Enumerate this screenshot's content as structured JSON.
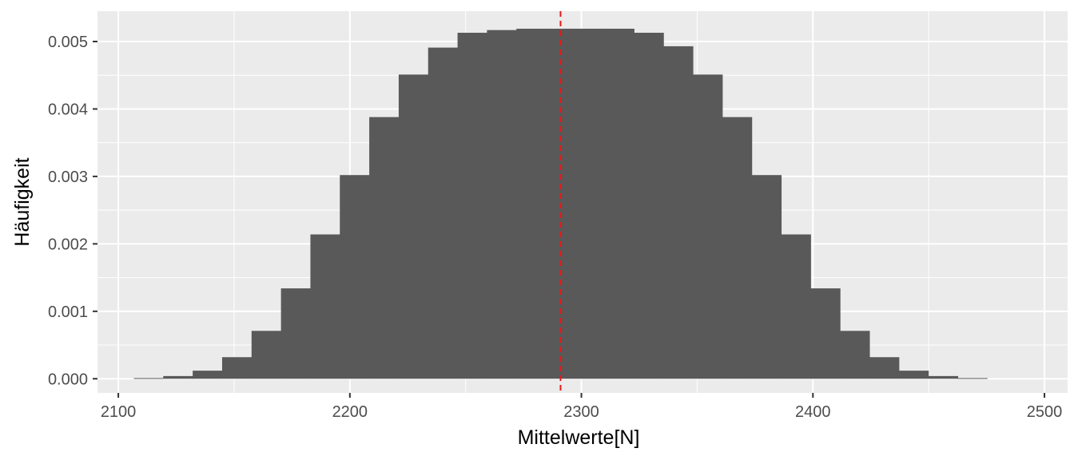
{
  "chart_data": {
    "type": "bar",
    "title": "",
    "xlabel": "Mittelwerte[N]",
    "ylabel": "Häufigkeit",
    "xlim": [
      2091,
      2510
    ],
    "ylim": [
      -0.00021,
      0.00545
    ],
    "x_ticks": [
      2100,
      2200,
      2300,
      2400,
      2500
    ],
    "y_ticks": [
      0.0,
      0.001,
      0.002,
      0.003,
      0.004,
      0.005
    ],
    "y_tick_labels": [
      "0.000",
      "0.001",
      "0.002",
      "0.003",
      "0.004",
      "0.005"
    ],
    "grid": true,
    "bin_width": 12.71,
    "bin_start": 2106.7,
    "values": [
      1e-05,
      4e-05,
      0.00012,
      0.00032,
      0.00071,
      0.00134,
      0.00214,
      0.00302,
      0.00388,
      0.00451,
      0.00491,
      0.00513,
      0.00517,
      0.00519,
      0.00519,
      0.00519,
      0.00519,
      0.00513,
      0.00493,
      0.00451,
      0.00388,
      0.00302,
      0.00214,
      0.00134,
      0.00071,
      0.00032,
      0.00012,
      4e-05,
      1e-05
    ],
    "mean_line": 2291,
    "colors": {
      "panel": "#ebebeb",
      "grid": "#ffffff",
      "bar": "#595959",
      "mean_line": "#e41a1c"
    }
  }
}
